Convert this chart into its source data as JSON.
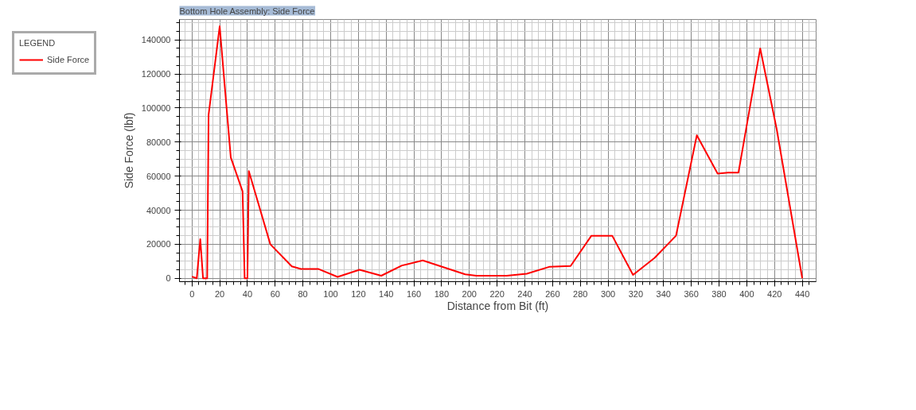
{
  "chart_data": {
    "type": "line",
    "title": "Bottom Hole Assembly: Side Force",
    "xlabel": "Distance from Bit (ft)",
    "ylabel": "Side Force (lbf)",
    "legend_title": "LEGEND",
    "legend": "top left",
    "grid": true,
    "xlim": [
      -9,
      450
    ],
    "ylim": [
      -2000,
      152000
    ],
    "xticks": [
      0,
      20,
      40,
      60,
      80,
      100,
      120,
      140,
      160,
      180,
      200,
      220,
      240,
      260,
      280,
      300,
      320,
      340,
      360,
      380,
      400,
      420,
      440
    ],
    "yticks": [
      0,
      20000,
      40000,
      60000,
      80000,
      100000,
      120000,
      140000
    ],
    "x": [
      0,
      3.5,
      6,
      8,
      11,
      12,
      20,
      28,
      36.5,
      38,
      40,
      41,
      56.5,
      72,
      78.6,
      91,
      105,
      120.8,
      136.5,
      151.4,
      166.4,
      197,
      205,
      227,
      241.4,
      258,
      273,
      288,
      303,
      318,
      333.6,
      349,
      364,
      379,
      386.5,
      394,
      409.7,
      421.6,
      440
    ],
    "series": [
      {
        "name": "Side Force",
        "color": "#ff0000",
        "values": [
          1000,
          0,
          23000,
          0,
          0,
          96000,
          148000,
          71000,
          51000,
          0,
          0,
          63000,
          20000,
          7000,
          5500,
          5500,
          800,
          5000,
          1500,
          7500,
          10500,
          2300,
          1500,
          1500,
          2700,
          6800,
          7200,
          25000,
          25000,
          2000,
          12000,
          25000,
          84000,
          61500,
          62000,
          62000,
          135000,
          87500,
          0
        ]
      }
    ]
  }
}
